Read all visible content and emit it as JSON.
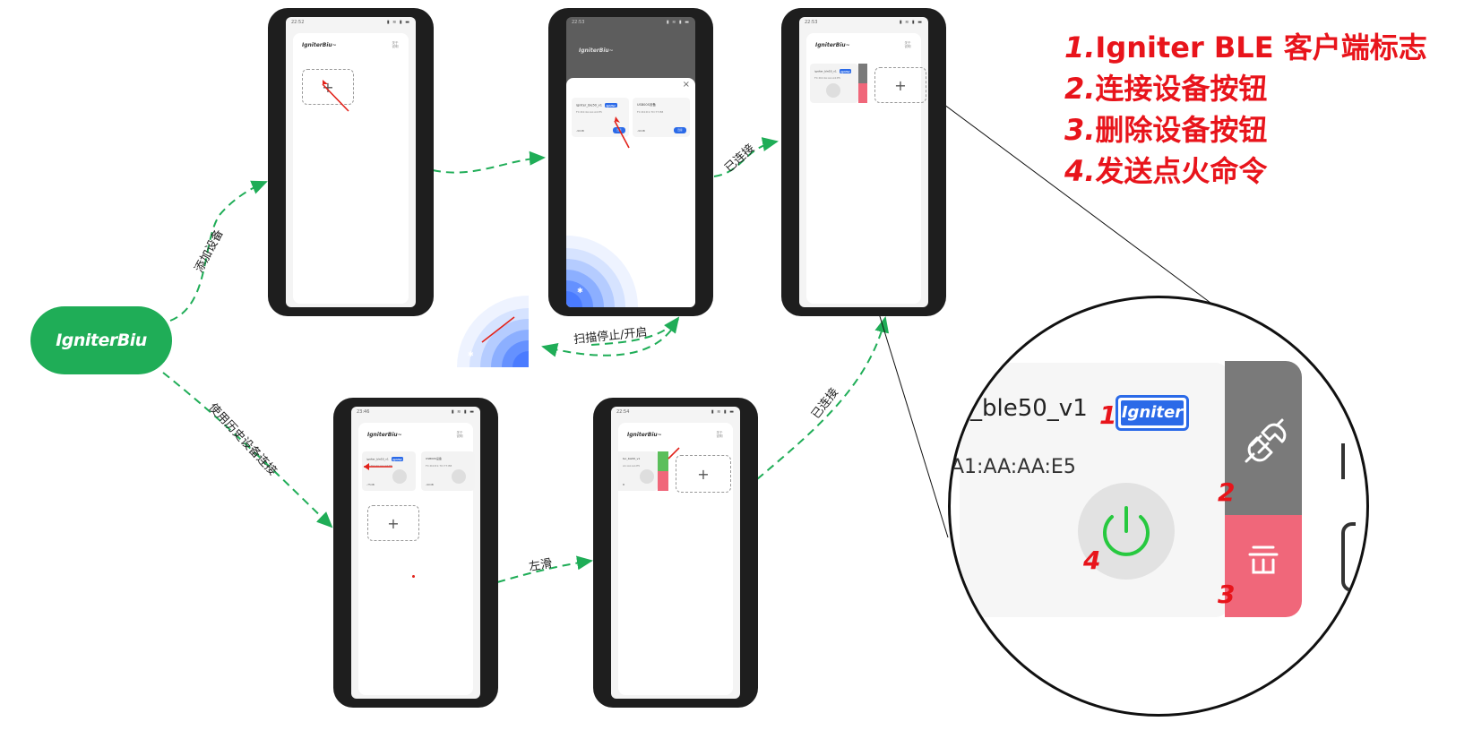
{
  "center_node": {
    "label": "IgniterBiu"
  },
  "edges": {
    "add_device": "添加设备",
    "use_history": "使用历史设备连接",
    "connected_top": "已连接",
    "connected_bottom": "已连接",
    "scan_toggle": "扫描停止/开启",
    "swipe_left": "左滑"
  },
  "phones": {
    "p1": {
      "time": "22:52",
      "app_title": "IgniterBiu~",
      "header_icon": "关于 说明"
    },
    "p2": {
      "time": "22:53",
      "app_title": "IgniterBiu~",
      "close": "×",
      "devices": [
        {
          "name": "igniter_ble50_v1",
          "tag": "Igniter",
          "mac": "FC:D4:4A:AA:A4:E5",
          "rssi": "-90dB",
          "button": "连接"
        },
        {
          "name": "USB00S设备",
          "mac": "FC:D4:D1:7D:77:B8",
          "rssi": "-90dB",
          "button": "连接"
        }
      ]
    },
    "p3": {
      "time": "22:53",
      "app_title": "IgniterBiu~",
      "header_icon": "关于 说明",
      "device_name": "igniter_ble50_v1",
      "tag": "Igniter",
      "mac": "FC:D4:4A:AA:A4:E5"
    },
    "p4": {
      "time": "23:46",
      "app_title": "IgniterBiu~",
      "header_icon": "关于 说明",
      "devices": [
        {
          "name": "igniter_ble50_v1",
          "tag": "Igniter",
          "mac": "FC:D4:4A:AA:A4:E5",
          "rssi": "-75dB"
        },
        {
          "name": "USB00S设备",
          "mac": "FC:D4:D1:7D:77:B8",
          "rssi": "-90dB"
        }
      ]
    },
    "p5": {
      "time": "22:54",
      "app_title": "IgniterBiu~",
      "header_icon": "关于 说明",
      "device_name": "ter_ble50_v1",
      "mac": "A1:AA:AA:E5",
      "rssi": "B"
    }
  },
  "legend": [
    {
      "num": "1.",
      "text": "Igniter BLE 客户端标志"
    },
    {
      "num": "2.",
      "text": "连接设备按钮"
    },
    {
      "num": "3.",
      "text": "删除设备按钮"
    },
    {
      "num": "4.",
      "text": "发送点火命令"
    }
  ],
  "zoom": {
    "device_name": "_ble50_v1",
    "logo_text": "Igniter",
    "mac": "A1:AA:AA:E5",
    "markers": [
      "1",
      "2",
      "3",
      "4"
    ]
  },
  "colors": {
    "node_green": "#1fad57",
    "annotation_red": "#e8141b",
    "brand_blue": "#2b6ae8",
    "connect_grey": "#7a7a7a",
    "delete_pink": "#f0677a",
    "power_green": "#27c93f"
  }
}
